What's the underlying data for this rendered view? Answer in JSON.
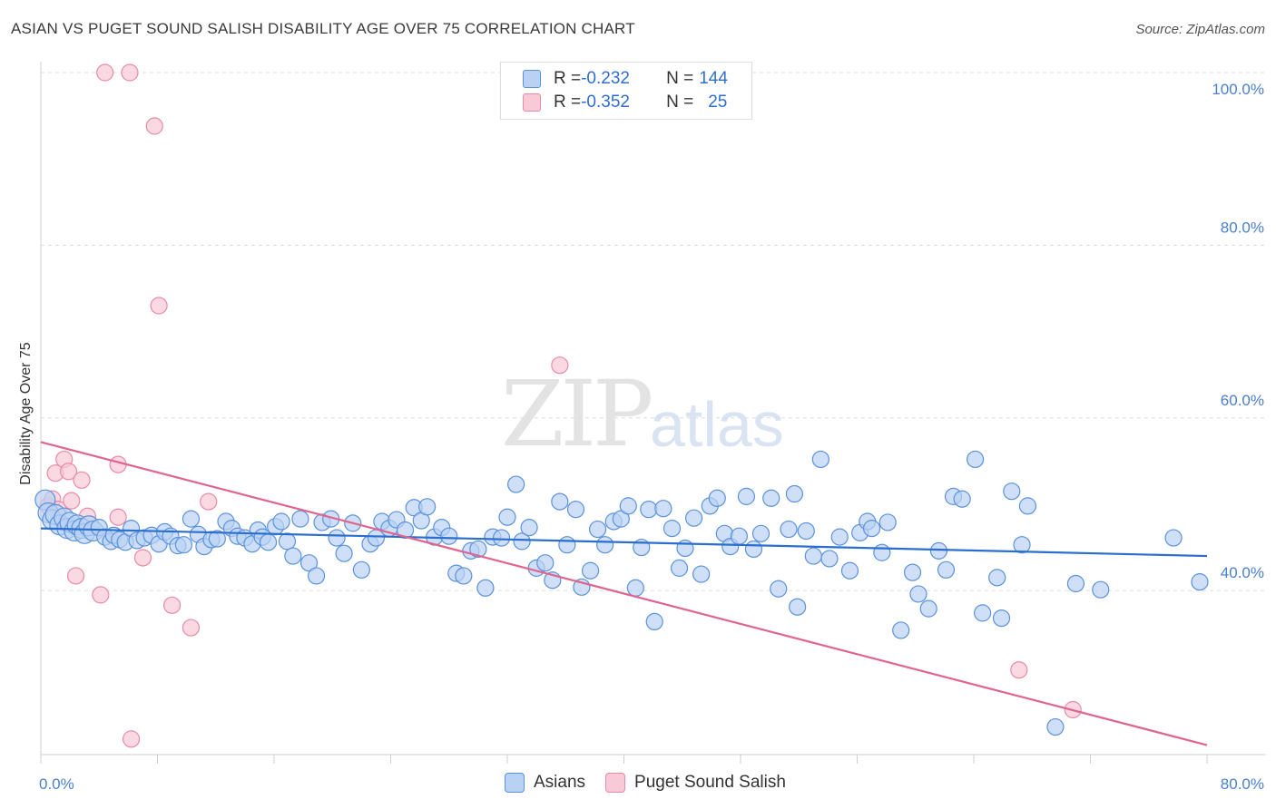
{
  "header": {
    "title": "ASIAN VS PUGET SOUND SALISH DISABILITY AGE OVER 75 CORRELATION CHART",
    "source": "Source: ZipAtlas.com"
  },
  "watermark": {
    "zip": "ZIP",
    "atlas": "atlas"
  },
  "legend": {
    "asians": {
      "r_label": "R = ",
      "r_value": "-0.232",
      "n_label": "N = ",
      "n_value": "144"
    },
    "salish": {
      "r_label": "R = ",
      "r_value": "-0.352",
      "n_label": "N = ",
      "n_value": "25"
    }
  },
  "bottom_legend": {
    "asians": "Asians",
    "salish": "Puget Sound Salish"
  },
  "colors": {
    "asians_fill": "#b9d1f3",
    "asians_stroke": "#5b92dc",
    "asians_line": "#2a6fcf",
    "salish_fill": "#f8c9d6",
    "salish_stroke": "#e98aa7",
    "salish_line": "#e0648f",
    "tick_label": "#4a7fd1",
    "grid": "#dcdcdc"
  },
  "chart_data": {
    "type": "scatter",
    "title": "ASIAN VS PUGET SOUND SALISH DISABILITY AGE OVER 75 CORRELATION CHART",
    "xlabel": "",
    "ylabel": "Disability Age Over 75",
    "xlim": [
      0,
      80
    ],
    "ylim": [
      21,
      100
    ],
    "x_ticks": [
      "0.0%",
      "80.0%"
    ],
    "y_ticks": [
      {
        "value": 100,
        "label": "100.0%"
      },
      {
        "value": 80,
        "label": "80.0%"
      },
      {
        "value": 60,
        "label": "60.0%"
      },
      {
        "value": 40,
        "label": "40.0%"
      }
    ],
    "series": [
      {
        "name": "Asians",
        "trend": {
          "x": [
            0,
            80
          ],
          "y": [
            47.2,
            44.0
          ]
        },
        "points": [
          [
            0.3,
            50.5
          ],
          [
            0.5,
            49.0
          ],
          [
            0.8,
            48.2
          ],
          [
            1.0,
            48.8
          ],
          [
            1.3,
            47.6
          ],
          [
            1.6,
            48.4
          ],
          [
            1.8,
            47.2
          ],
          [
            2.0,
            47.9
          ],
          [
            2.3,
            46.9
          ],
          [
            2.5,
            47.6
          ],
          [
            2.8,
            47.2
          ],
          [
            3.0,
            46.6
          ],
          [
            3.3,
            47.5
          ],
          [
            3.6,
            46.9
          ],
          [
            4.0,
            47.3
          ],
          [
            4.4,
            46.2
          ],
          [
            4.8,
            45.7
          ],
          [
            5.0,
            46.4
          ],
          [
            5.4,
            45.9
          ],
          [
            5.8,
            45.6
          ],
          [
            6.2,
            47.2
          ],
          [
            6.6,
            45.8
          ],
          [
            7.1,
            46.1
          ],
          [
            7.6,
            46.4
          ],
          [
            8.1,
            45.4
          ],
          [
            8.5,
            46.8
          ],
          [
            8.9,
            46.3
          ],
          [
            9.4,
            45.2
          ],
          [
            9.8,
            45.3
          ],
          [
            10.3,
            48.3
          ],
          [
            10.8,
            46.5
          ],
          [
            11.2,
            45.1
          ],
          [
            11.7,
            45.9
          ],
          [
            12.1,
            46.0
          ],
          [
            12.7,
            48.0
          ],
          [
            13.1,
            47.2
          ],
          [
            13.5,
            46.3
          ],
          [
            14.0,
            46.1
          ],
          [
            14.5,
            45.4
          ],
          [
            14.9,
            47.0
          ],
          [
            15.2,
            46.2
          ],
          [
            15.6,
            45.6
          ],
          [
            16.1,
            47.4
          ],
          [
            16.5,
            48.0
          ],
          [
            16.9,
            45.7
          ],
          [
            17.3,
            44.0
          ],
          [
            17.8,
            48.3
          ],
          [
            18.4,
            43.2
          ],
          [
            18.9,
            41.7
          ],
          [
            19.3,
            47.9
          ],
          [
            19.9,
            48.3
          ],
          [
            20.3,
            46.1
          ],
          [
            20.8,
            44.3
          ],
          [
            21.4,
            47.8
          ],
          [
            22.0,
            42.4
          ],
          [
            22.6,
            45.4
          ],
          [
            23.0,
            46.1
          ],
          [
            23.4,
            48.0
          ],
          [
            23.9,
            47.2
          ],
          [
            24.4,
            48.2
          ],
          [
            25.0,
            47.0
          ],
          [
            25.6,
            49.6
          ],
          [
            26.1,
            48.1
          ],
          [
            26.5,
            49.7
          ],
          [
            27.0,
            46.2
          ],
          [
            27.5,
            47.3
          ],
          [
            28.0,
            46.3
          ],
          [
            28.5,
            42.0
          ],
          [
            29.0,
            41.7
          ],
          [
            29.5,
            44.6
          ],
          [
            30.0,
            44.8
          ],
          [
            30.5,
            40.3
          ],
          [
            31.0,
            46.2
          ],
          [
            31.6,
            46.1
          ],
          [
            32.0,
            48.5
          ],
          [
            32.6,
            52.3
          ],
          [
            33.0,
            45.7
          ],
          [
            33.5,
            47.3
          ],
          [
            34.0,
            42.6
          ],
          [
            34.6,
            43.2
          ],
          [
            35.1,
            41.2
          ],
          [
            35.6,
            50.3
          ],
          [
            36.1,
            45.3
          ],
          [
            36.7,
            49.4
          ],
          [
            37.1,
            40.4
          ],
          [
            37.7,
            42.3
          ],
          [
            38.2,
            47.1
          ],
          [
            38.7,
            45.3
          ],
          [
            39.3,
            48.0
          ],
          [
            39.8,
            48.3
          ],
          [
            40.3,
            49.8
          ],
          [
            40.8,
            40.3
          ],
          [
            41.2,
            45.0
          ],
          [
            41.7,
            49.4
          ],
          [
            42.1,
            36.4
          ],
          [
            42.7,
            49.5
          ],
          [
            43.3,
            47.2
          ],
          [
            43.8,
            42.6
          ],
          [
            44.2,
            44.9
          ],
          [
            44.8,
            48.4
          ],
          [
            45.3,
            41.9
          ],
          [
            45.9,
            49.8
          ],
          [
            46.4,
            50.7
          ],
          [
            46.9,
            46.6
          ],
          [
            47.3,
            45.1
          ],
          [
            47.9,
            46.3
          ],
          [
            48.4,
            50.9
          ],
          [
            48.9,
            44.8
          ],
          [
            49.4,
            46.6
          ],
          [
            50.1,
            50.7
          ],
          [
            50.6,
            40.2
          ],
          [
            51.3,
            47.1
          ],
          [
            51.7,
            51.2
          ],
          [
            51.9,
            38.1
          ],
          [
            52.5,
            46.9
          ],
          [
            53.0,
            44.0
          ],
          [
            53.5,
            55.2
          ],
          [
            54.1,
            43.7
          ],
          [
            54.8,
            46.2
          ],
          [
            55.5,
            42.3
          ],
          [
            56.2,
            46.7
          ],
          [
            56.7,
            48.0
          ],
          [
            57.0,
            47.2
          ],
          [
            57.7,
            44.4
          ],
          [
            58.1,
            47.9
          ],
          [
            59.0,
            35.4
          ],
          [
            59.8,
            42.1
          ],
          [
            60.2,
            39.6
          ],
          [
            60.9,
            37.9
          ],
          [
            61.6,
            44.6
          ],
          [
            62.1,
            42.4
          ],
          [
            62.6,
            50.9
          ],
          [
            63.2,
            50.6
          ],
          [
            64.1,
            55.2
          ],
          [
            64.6,
            37.4
          ],
          [
            65.6,
            41.5
          ],
          [
            65.9,
            36.8
          ],
          [
            66.6,
            51.5
          ],
          [
            67.3,
            45.3
          ],
          [
            67.7,
            49.8
          ],
          [
            69.6,
            24.2
          ],
          [
            71.0,
            40.8
          ],
          [
            72.7,
            40.1
          ],
          [
            77.7,
            46.1
          ],
          [
            79.5,
            41.0
          ]
        ]
      },
      {
        "name": "Puget Sound Salish",
        "trend": {
          "x": [
            0,
            80
          ],
          "y": [
            57.2,
            22.1
          ]
        },
        "points": [
          [
            0.5,
            49.8
          ],
          [
            0.8,
            50.6
          ],
          [
            1.0,
            53.6
          ],
          [
            1.2,
            49.4
          ],
          [
            1.6,
            55.2
          ],
          [
            1.9,
            53.8
          ],
          [
            2.1,
            50.4
          ],
          [
            2.4,
            41.7
          ],
          [
            2.8,
            52.8
          ],
          [
            3.2,
            48.6
          ],
          [
            4.1,
            39.5
          ],
          [
            4.4,
            100.0
          ],
          [
            5.3,
            48.5
          ],
          [
            5.3,
            54.6
          ],
          [
            6.1,
            100.0
          ],
          [
            6.2,
            22.8
          ],
          [
            7.0,
            43.8
          ],
          [
            7.8,
            93.8
          ],
          [
            8.1,
            73.0
          ],
          [
            9.0,
            38.3
          ],
          [
            10.3,
            35.7
          ],
          [
            11.5,
            50.3
          ],
          [
            35.6,
            66.1
          ],
          [
            67.1,
            30.8
          ],
          [
            70.8,
            26.2
          ]
        ]
      }
    ]
  }
}
